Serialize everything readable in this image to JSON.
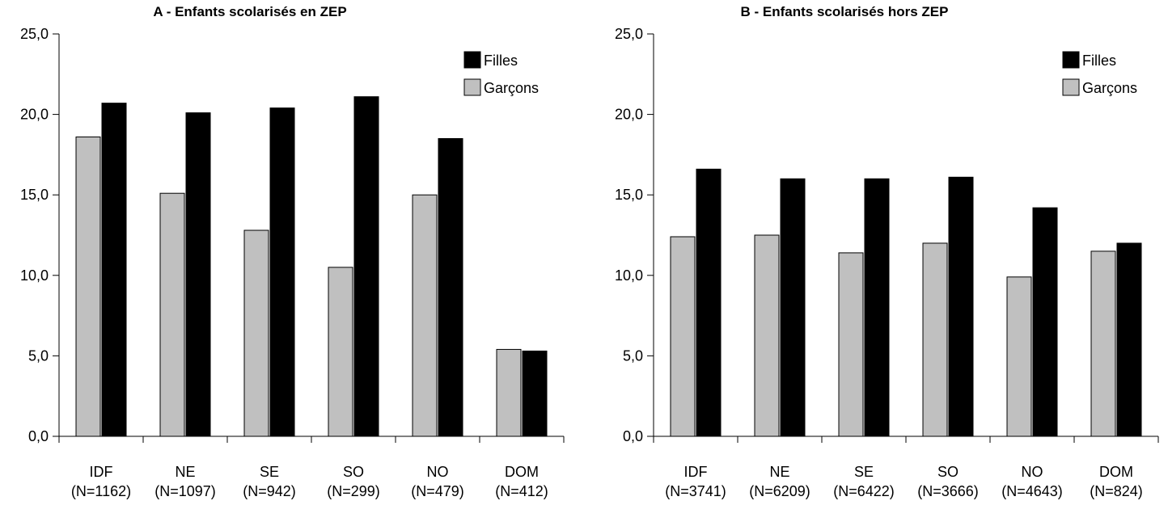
{
  "chart_data": [
    {
      "type": "bar",
      "title": "A - Enfants scolarisés en ZEP",
      "xlabel": "",
      "ylabel": "",
      "ylim": [
        0,
        25
      ],
      "yticks": [
        "0,0",
        "5,0",
        "10,0",
        "15,0",
        "20,0",
        "25,0"
      ],
      "categories": [
        "IDF",
        "NE",
        "SE",
        "SO",
        "NO",
        "DOM"
      ],
      "category_counts": [
        "(N=1162)",
        "(N=1097)",
        "(N=942)",
        "(N=299)",
        "(N=479)",
        "(N=412)"
      ],
      "series": [
        {
          "name": "Garçons",
          "color": "#c0c0c0",
          "values": [
            18.6,
            15.1,
            12.8,
            10.5,
            15.0,
            5.4
          ]
        },
        {
          "name": "Filles",
          "color": "#000000",
          "values": [
            20.7,
            20.1,
            20.4,
            21.1,
            18.5,
            5.3
          ]
        }
      ],
      "legend": {
        "position": "top-right",
        "order": [
          "Filles",
          "Garçons"
        ]
      },
      "grid": false
    },
    {
      "type": "bar",
      "title": "B - Enfants scolarisés hors ZEP",
      "xlabel": "",
      "ylabel": "",
      "ylim": [
        0,
        25
      ],
      "yticks": [
        "0,0",
        "5,0",
        "10,0",
        "15,0",
        "20,0",
        "25,0"
      ],
      "categories": [
        "IDF",
        "NE",
        "SE",
        "SO",
        "NO",
        "DOM"
      ],
      "category_counts": [
        "(N=3741)",
        "(N=6209)",
        "(N=6422)",
        "(N=3666)",
        "(N=4643)",
        "(N=824)"
      ],
      "series": [
        {
          "name": "Garçons",
          "color": "#c0c0c0",
          "values": [
            12.4,
            12.5,
            11.4,
            12.0,
            9.9,
            11.5
          ]
        },
        {
          "name": "Filles",
          "color": "#000000",
          "values": [
            16.6,
            16.0,
            16.0,
            16.1,
            14.2,
            12.0
          ]
        }
      ],
      "legend": {
        "position": "top-right",
        "order": [
          "Filles",
          "Garçons"
        ]
      },
      "grid": false
    }
  ]
}
